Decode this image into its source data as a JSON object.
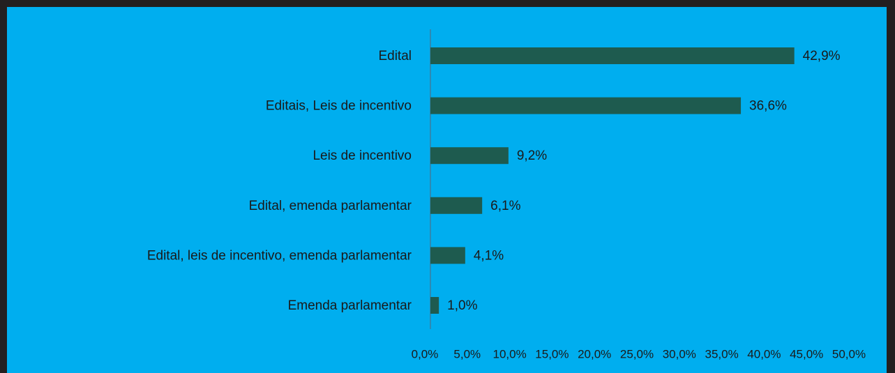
{
  "chart_data": {
    "type": "barh",
    "categories": [
      "Edital",
      "Editais, Leis de incentivo",
      "Leis de incentivo",
      "Edital, emenda parlamentar",
      "Edital, leis de incentivo, emenda parlamentar",
      "Emenda parlamentar"
    ],
    "values": [
      42.9,
      36.6,
      9.2,
      6.1,
      4.1,
      1.0
    ],
    "value_labels": [
      "42,9%",
      "36,6%",
      "9,2%",
      "6,1%",
      "4,1%",
      "1,0%"
    ],
    "color": "#1e5b4f",
    "xlim": [
      0,
      50
    ],
    "xticks": [
      {
        "value": 0,
        "label": "0,0%"
      },
      {
        "value": 5,
        "label": "5,0%"
      },
      {
        "value": 10,
        "label": "10,0%"
      },
      {
        "value": 15,
        "label": "15,0%"
      },
      {
        "value": 20,
        "label": "20,0%"
      },
      {
        "value": 25,
        "label": "25,0%"
      },
      {
        "value": 30,
        "label": "30,0%"
      },
      {
        "value": 35,
        "label": "35,0%"
      },
      {
        "value": 40,
        "label": "40,0%"
      },
      {
        "value": 45,
        "label": "45,0%"
      },
      {
        "value": 50,
        "label": "50,0%"
      }
    ]
  }
}
